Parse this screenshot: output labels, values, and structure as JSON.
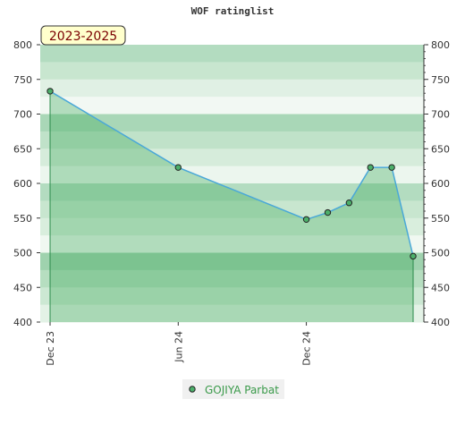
{
  "chart_data": {
    "type": "line",
    "title": "WOF ratinglist",
    "badge": "2023-2025",
    "x": [
      "2023-12",
      "2024-06",
      "2024-12",
      "2025-01",
      "2025-02",
      "2025-03",
      "2025-04",
      "2025-05"
    ],
    "xticks": [
      {
        "value": "2023-12",
        "label": "Dec 23"
      },
      {
        "value": "2024-06",
        "label": "Jun 24"
      },
      {
        "value": "2024-12",
        "label": "Dec 24"
      }
    ],
    "series": [
      {
        "name": "GOJIYA Parbat",
        "color": "#4aa8d8",
        "values": [
          733,
          623,
          548,
          558,
          572,
          623,
          623,
          495
        ]
      }
    ],
    "ylim": [
      400,
      800
    ],
    "yticks": [
      400,
      450,
      500,
      550,
      600,
      650,
      700,
      750,
      800
    ],
    "y2lim": [
      400,
      800
    ],
    "y2ticks": [
      400,
      450,
      500,
      550,
      600,
      650,
      700,
      750,
      800
    ]
  }
}
